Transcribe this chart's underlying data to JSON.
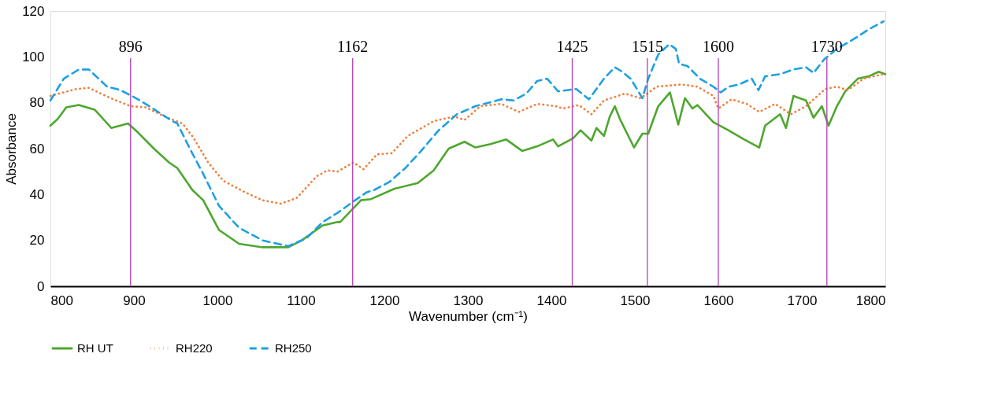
{
  "chart_data": {
    "type": "line",
    "xlabel": "Wavenumber (cm⁻¹)",
    "ylabel": "Absorbance",
    "xlim": [
      800,
      1800
    ],
    "xticks": [
      800,
      900,
      1000,
      1100,
      1200,
      1300,
      1400,
      1500,
      1600,
      1700,
      1800
    ],
    "ylim": [
      0,
      120
    ],
    "yticks": [
      0,
      20,
      40,
      60,
      80,
      100,
      120
    ],
    "grid": false,
    "legend": "bottom",
    "series": [
      {
        "name": "RH UT",
        "color": "#4ea72e",
        "line_style": "solid",
        "x": [
          800,
          809,
          819,
          834,
          853,
          873,
          893,
          905,
          924,
          942,
          952,
          970,
          983,
          1002,
          1026,
          1054,
          1085,
          1101,
          1126,
          1144,
          1147,
          1172,
          1184,
          1212,
          1240,
          1259,
          1277,
          1296,
          1309,
          1327,
          1346,
          1365,
          1383,
          1402,
          1408,
          1426,
          1435,
          1448,
          1454,
          1463,
          1470,
          1476,
          1482,
          1499,
          1509,
          1516,
          1528,
          1542,
          1552,
          1560,
          1569,
          1575,
          1594,
          1612,
          1631,
          1649,
          1656,
          1674,
          1681,
          1690,
          1705,
          1714,
          1724,
          1732,
          1742,
          1752,
          1767,
          1780,
          1792,
          1800
        ],
        "values": [
          70,
          73,
          78,
          79,
          77,
          69,
          71,
          67,
          60,
          54,
          51.5,
          42,
          37.5,
          24.5,
          18.5,
          17,
          17,
          20,
          26.5,
          28,
          28,
          37.5,
          38,
          42.5,
          45,
          50.5,
          60,
          63,
          60.5,
          62,
          64,
          59,
          61,
          64,
          61,
          64.5,
          68,
          63.5,
          69,
          65.5,
          74,
          78.5,
          73,
          60.5,
          66.5,
          66.5,
          78.5,
          84.5,
          70.5,
          82,
          77.5,
          79,
          71.5,
          68,
          64,
          60.5,
          70,
          75,
          69,
          83,
          81,
          73.5,
          78.5,
          70,
          78.5,
          85,
          90.5,
          91.5,
          93.5,
          92.5
        ]
      },
      {
        "name": "RH220",
        "color": "#f07f3c",
        "line_style": "dotted",
        "x": [
          800,
          831,
          846,
          872,
          896,
          914,
          937,
          958,
          970,
          989,
          1007,
          1033,
          1054,
          1076,
          1095,
          1119,
          1132,
          1144,
          1163,
          1175,
          1191,
          1209,
          1228,
          1259,
          1284,
          1296,
          1315,
          1340,
          1361,
          1383,
          1405,
          1414,
          1433,
          1448,
          1463,
          1488,
          1507,
          1526,
          1556,
          1575,
          1594,
          1600,
          1616,
          1634,
          1649,
          1668,
          1687,
          1705,
          1728,
          1742,
          1755,
          1774,
          1798
        ],
        "values": [
          83,
          86,
          86.5,
          82,
          78.5,
          78,
          74,
          71,
          65.5,
          54,
          46,
          41,
          37.5,
          36,
          38.5,
          48,
          50.5,
          50,
          54,
          51,
          57.5,
          58,
          65.5,
          72,
          74,
          72.5,
          78.5,
          79.5,
          76,
          79.5,
          78.5,
          77.5,
          79,
          75,
          81,
          84,
          82,
          87,
          88,
          87,
          83,
          77.5,
          81.5,
          79.5,
          76,
          79.5,
          75,
          78.5,
          86,
          87,
          85.5,
          90.5,
          92.5
        ]
      },
      {
        "name": "RH250",
        "color": "#1da1e0",
        "line_style": "dashed",
        "x": [
          800,
          816,
          834,
          846,
          868,
          884,
          905,
          927,
          946,
          952,
          967,
          983,
          1002,
          1026,
          1054,
          1085,
          1107,
          1126,
          1144,
          1163,
          1179,
          1188,
          1206,
          1225,
          1244,
          1265,
          1287,
          1309,
          1340,
          1355,
          1370,
          1383,
          1395,
          1408,
          1430,
          1445,
          1463,
          1476,
          1485,
          1495,
          1509,
          1516,
          1528,
          1541,
          1549,
          1553,
          1563,
          1578,
          1594,
          1603,
          1612,
          1625,
          1640,
          1648,
          1656,
          1674,
          1690,
          1705,
          1714,
          1727,
          1742,
          1761,
          1780,
          1798
        ],
        "values": [
          81,
          90.5,
          94.5,
          94.5,
          87,
          85.5,
          81.5,
          76.5,
          72,
          71,
          60,
          49,
          35,
          25.5,
          20,
          17.5,
          21,
          28,
          32,
          37,
          41,
          42,
          45.5,
          51.5,
          59,
          68,
          75,
          78.5,
          81.5,
          81,
          84,
          89.5,
          90.5,
          85,
          86,
          81.5,
          90.5,
          95.5,
          93.5,
          90.5,
          82,
          90.5,
          101,
          105.5,
          103.5,
          97,
          96,
          90.5,
          87,
          84.5,
          87,
          88,
          90.5,
          85.5,
          91.5,
          92.5,
          94.5,
          95.5,
          93,
          99,
          103.5,
          107.5,
          112,
          115.5
        ]
      }
    ],
    "ref_lines": [
      {
        "axis": "x",
        "value": 896,
        "label": "896",
        "color": "#b23fb5"
      },
      {
        "axis": "x",
        "value": 1162,
        "label": "1162",
        "color": "#b23fb5"
      },
      {
        "axis": "x",
        "value": 1425,
        "label": "1425",
        "color": "#b23fb5"
      },
      {
        "axis": "x",
        "value": 1515,
        "label": "1515",
        "color": "#b23fb5"
      },
      {
        "axis": "x",
        "value": 1600,
        "label": "1600",
        "color": "#b23fb5"
      },
      {
        "axis": "x",
        "value": 1730,
        "label": "1730",
        "color": "#b23fb5"
      }
    ]
  }
}
